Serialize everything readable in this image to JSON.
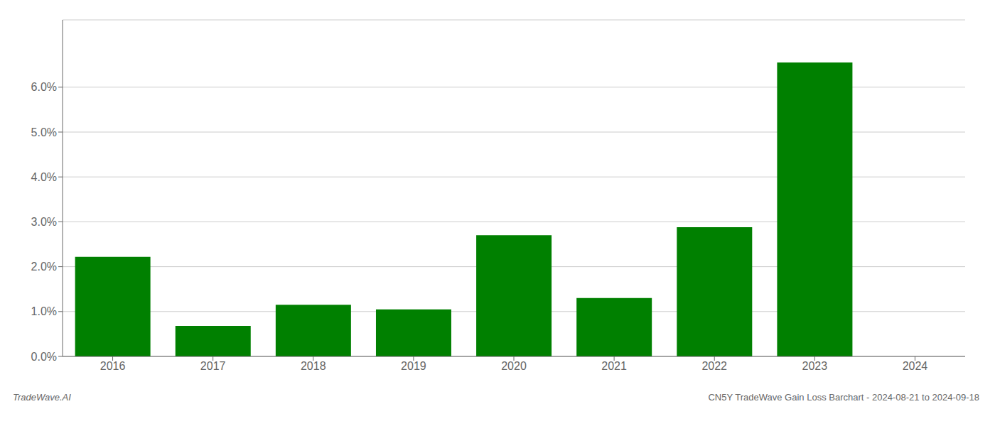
{
  "chart_data": {
    "type": "bar",
    "categories": [
      "2016",
      "2017",
      "2018",
      "2019",
      "2020",
      "2021",
      "2022",
      "2023",
      "2024"
    ],
    "values": [
      0.0222,
      0.0068,
      0.0115,
      0.0105,
      0.027,
      0.013,
      0.0288,
      0.0655,
      0.0
    ],
    "color": "#008000",
    "ylim": [
      0,
      0.075
    ],
    "yticks": [
      {
        "value": 0.0,
        "label": "0.0%"
      },
      {
        "value": 0.01,
        "label": "1.0%"
      },
      {
        "value": 0.02,
        "label": "2.0%"
      },
      {
        "value": 0.03,
        "label": "3.0%"
      },
      {
        "value": 0.04,
        "label": "4.0%"
      },
      {
        "value": 0.05,
        "label": "5.0%"
      },
      {
        "value": 0.06,
        "label": "6.0%"
      }
    ],
    "grid": true,
    "annotations": [
      {
        "text": "TradeWave.AI"
      },
      {
        "text": "CN5Y TradeWave Gain Loss Barchart - 2024-08-21 to 2024-09-18"
      }
    ]
  }
}
